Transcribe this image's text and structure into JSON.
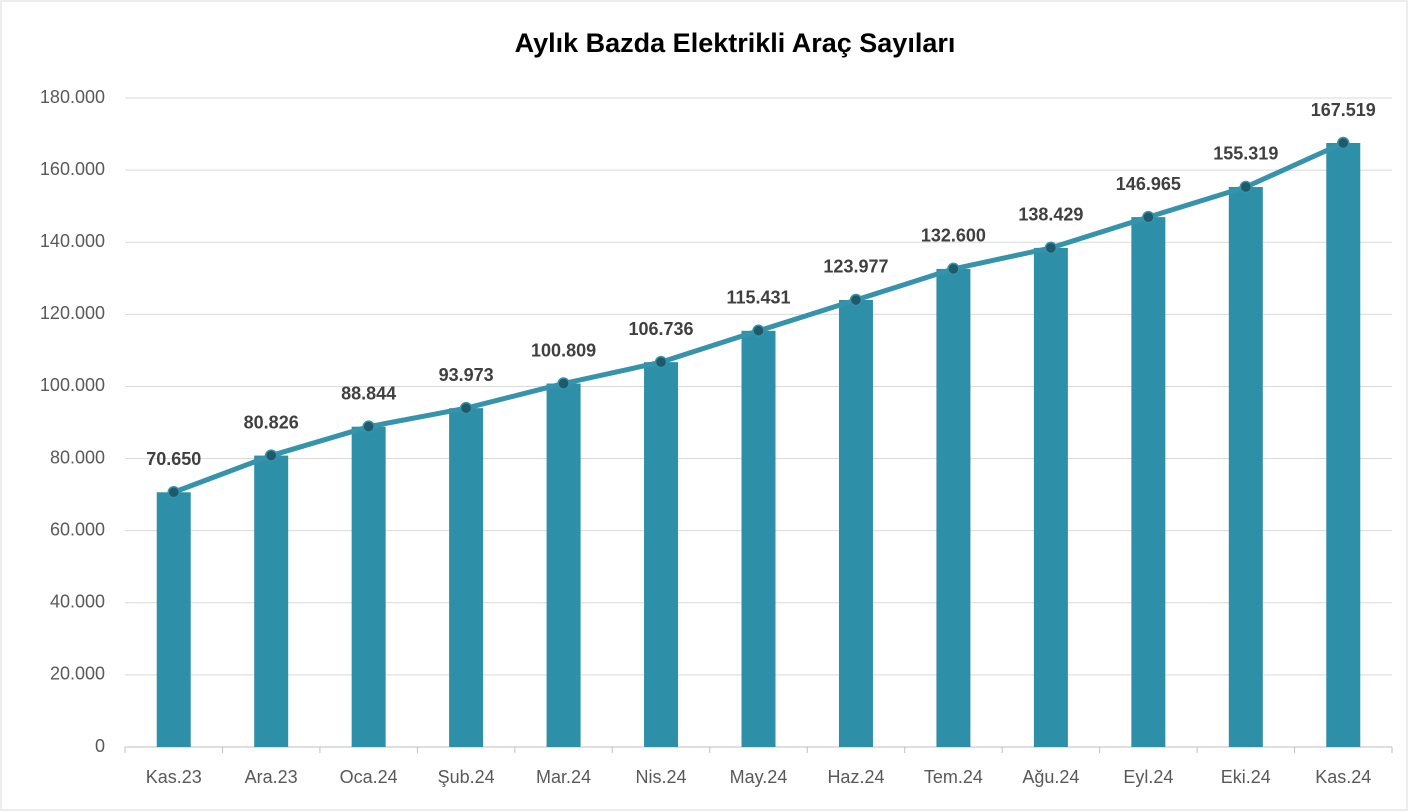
{
  "chart_data": {
    "type": "bar",
    "title": "Aylık Bazda Elektrikli Araç Sayıları",
    "categories": [
      "Kas.23",
      "Ara.23",
      "Oca.24",
      "Şub.24",
      "Mar.24",
      "Nis.24",
      "May.24",
      "Haz.24",
      "Tem.24",
      "Ağu.24",
      "Eyl.24",
      "Eki.24",
      "Kas.24"
    ],
    "values": [
      70650,
      80826,
      88844,
      93973,
      100809,
      106736,
      115431,
      123977,
      132600,
      138429,
      146965,
      155319,
      167519
    ],
    "value_labels": [
      "70.650",
      "80.826",
      "88.844",
      "93.973",
      "100.809",
      "106.736",
      "115.431",
      "123.977",
      "132.600",
      "138.429",
      "146.965",
      "155.319",
      "167.519"
    ],
    "color": "#2e8fa8",
    "line_overlay": true,
    "line_color": "#3593ab",
    "marker_color": "#1f5a6b",
    "ylim": [
      0,
      180000
    ],
    "yticks": [
      0,
      {
        "value": 20000,
        "label": "20.000"
      },
      {
        "value": 40000,
        "label": "40.000"
      },
      {
        "value": 60000,
        "label": "60.000"
      },
      {
        "value": 80000,
        "label": "80.000"
      },
      {
        "value": 100000,
        "label": "100.000"
      },
      {
        "value": 120000,
        "label": "120.000"
      },
      {
        "value": 140000,
        "label": "140.000"
      },
      {
        "value": 160000,
        "label": "160.000"
      },
      {
        "value": 180000,
        "label": "180.000"
      }
    ],
    "grid": true
  }
}
